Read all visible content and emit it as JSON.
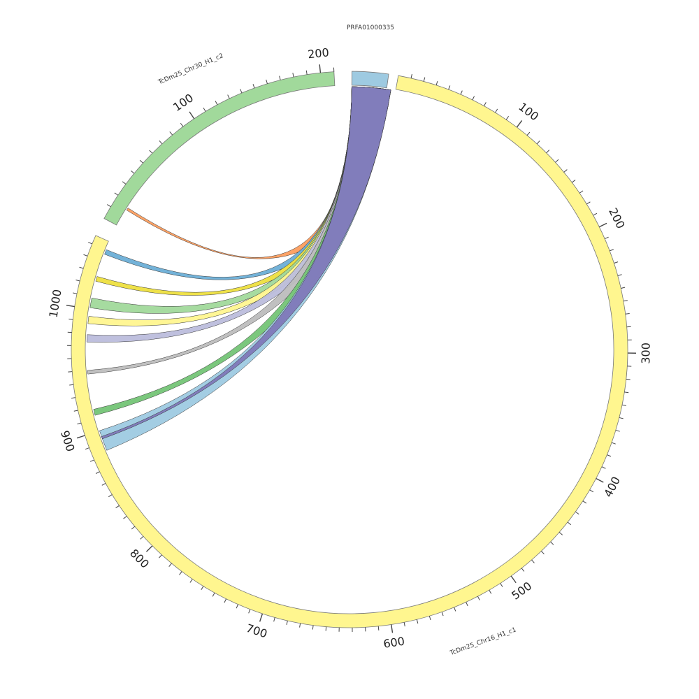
{
  "sequences": [
    {
      "id": "chr16",
      "name": "TcDm25_Chr16_H1_c1",
      "length": 1057,
      "color": "#fff68f"
    },
    {
      "id": "chr30",
      "name": "TcDm25_Chr30_H1_c2",
      "length": 210,
      "color": "#a1d99b"
    },
    {
      "id": "prfa",
      "name": "PRFA01000335",
      "length": 8,
      "color": "#9ecae1"
    }
  ],
  "tick_labels": {
    "chr16": [
      "100",
      "200",
      "300",
      "400",
      "500",
      "600",
      "700",
      "800",
      "900",
      "1000"
    ],
    "chr30": [
      "100",
      "200"
    ]
  },
  "links": [
    {
      "source": [
        0,
        9
      ],
      "target": "chr30",
      "target_range": [
        14,
        16
      ],
      "color": "#fc9d5e"
    },
    {
      "source": [
        0,
        9
      ],
      "target": "chr16",
      "target_range": [
        1046,
        1050
      ],
      "color": "#6baed6"
    },
    {
      "source": [
        0,
        9
      ],
      "target": "chr16",
      "target_range": [
        1023,
        1027
      ],
      "color": "#eddf3f"
    },
    {
      "source": [
        0,
        9
      ],
      "target": "chr16",
      "target_range": [
        1001,
        1009
      ],
      "color": "#a1d99b"
    },
    {
      "source": [
        0,
        9
      ],
      "target": "chr16",
      "target_range": [
        988,
        994
      ],
      "color": "#fff68f"
    },
    {
      "source": [
        0,
        9
      ],
      "target": "chr16",
      "target_range": [
        973,
        979
      ],
      "color": "#bcbddc"
    },
    {
      "source": [
        0,
        9
      ],
      "target": "chr16",
      "target_range": [
        947,
        950
      ],
      "color": "#bdbdbd"
    },
    {
      "source": [
        0,
        9
      ],
      "target": "chr16",
      "target_range": [
        913,
        918
      ],
      "color": "#74c476"
    },
    {
      "source": [
        0,
        9
      ],
      "target": "chr16",
      "target_range": [
        883,
        900
      ],
      "color": "#9ecae1"
    },
    {
      "source": [
        0,
        9
      ],
      "target": "chr16",
      "target_range": [
        893,
        895
      ],
      "color": "#8078b8"
    }
  ]
}
